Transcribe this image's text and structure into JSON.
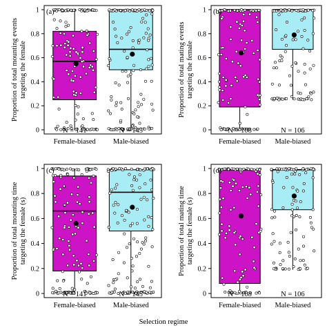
{
  "colors": {
    "female_biased": "#cc14c6",
    "male_biased": "#a8ecf6"
  },
  "shared_xlabel": "Selection regime",
  "chart_data": [
    {
      "panel": "(a)",
      "type": "box",
      "ylabel": [
        "Proportion of total mounting events",
        "targeting the female"
      ],
      "ylim": [
        0,
        1
      ],
      "yticks": [
        "0",
        "0.2",
        "0.4",
        "0.6",
        "0.8",
        "1"
      ],
      "categories": [
        "Female-biased",
        "Male-biased"
      ],
      "groups": [
        {
          "name": "Female-biased",
          "n_label": "N = 141",
          "q1": 0.25,
          "median": 0.57,
          "q3": 0.82,
          "mean": 0.55,
          "whisker_low": 0,
          "whisker_high": 1
        },
        {
          "name": "Male-biased",
          "n_label": "N = 145",
          "q1": 0.5,
          "median": 0.67,
          "q3": 1.0,
          "mean": 0.63,
          "whisker_low": 0,
          "whisker_high": 1
        }
      ]
    },
    {
      "panel": "(b)",
      "type": "box",
      "ylabel": [
        "Proportion of total mating events",
        "targeting the female"
      ],
      "ylim": [
        0,
        1
      ],
      "yticks": [
        "0",
        "0.2",
        "0.4",
        "0.6",
        "0.8",
        "1"
      ],
      "categories": [
        "Female-biased",
        "Male-biased"
      ],
      "groups": [
        {
          "name": "Female-biased",
          "n_label": "N = 108",
          "q1": 0.19,
          "median": 1.0,
          "q3": 1.0,
          "mean": 0.64,
          "whisker_low": 0,
          "whisker_high": 1
        },
        {
          "name": "Male-biased",
          "n_label": "N = 106",
          "q1": 0.67,
          "median": 1.0,
          "q3": 1.0,
          "mean": 0.79,
          "whisker_low": 0.25,
          "whisker_high": 1
        }
      ]
    },
    {
      "panel": "(c)",
      "type": "box",
      "ylabel": [
        "Proportion of total mounting time",
        "targeting the female (s)"
      ],
      "ylim": [
        0,
        1
      ],
      "yticks": [
        "0",
        "0.2",
        "0.4",
        "0.6",
        "0.8",
        "1"
      ],
      "categories": [
        "Female-biased",
        "Male-biased"
      ],
      "groups": [
        {
          "name": "Female-biased",
          "n_label": "N = 141",
          "q1": 0.18,
          "median": 0.66,
          "q3": 0.94,
          "mean": 0.56,
          "whisker_low": 0,
          "whisker_high": 1
        },
        {
          "name": "Male-biased",
          "n_label": "N = 145",
          "q1": 0.5,
          "median": 0.81,
          "q3": 0.99,
          "mean": 0.69,
          "whisker_low": 0,
          "whisker_high": 1
        }
      ]
    },
    {
      "panel": "(d)",
      "type": "box",
      "ylabel": [
        "Proportion of total mating time",
        "targeting the female (s)"
      ],
      "ylim": [
        0,
        1
      ],
      "yticks": [
        "0",
        "0.2",
        "0.4",
        "0.6",
        "0.8",
        "1"
      ],
      "categories": [
        "Female-biased",
        "Male-biased"
      ],
      "groups": [
        {
          "name": "Female-biased",
          "n_label": "N = 108",
          "q1": 0.08,
          "median": 0.99,
          "q3": 0.99,
          "mean": 0.62,
          "whisker_low": 0,
          "whisker_high": 1
        },
        {
          "name": "Male-biased",
          "n_label": "N = 106",
          "q1": 0.67,
          "median": 0.99,
          "q3": 0.99,
          "mean": 0.78,
          "whisker_low": 0.19,
          "whisker_high": 1
        }
      ]
    }
  ]
}
